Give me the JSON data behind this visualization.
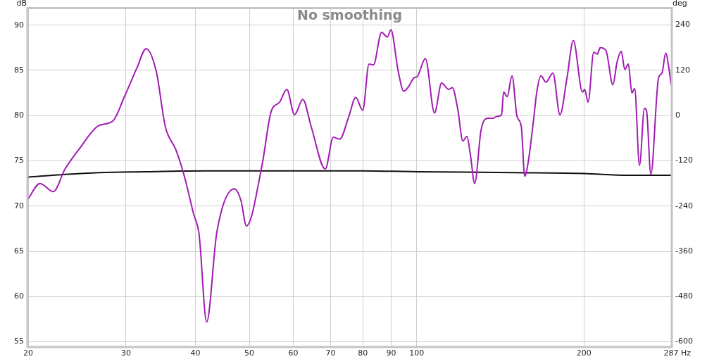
{
  "chart_data": {
    "type": "line",
    "title": "No smoothing",
    "xlabel": "Hz",
    "ylabel": "dB",
    "y2label": "deg",
    "log": "x",
    "grid": true,
    "legend": false,
    "marker": "none",
    "xlim": [
      20,
      287
    ],
    "xticks": [
      20,
      30,
      40,
      50,
      60,
      70,
      80,
      90,
      100,
      200,
      287
    ],
    "ylim": [
      54.5,
      91.8
    ],
    "yticks": [
      55,
      60,
      65,
      70,
      75,
      80,
      85,
      90
    ],
    "y2lim": [
      -612,
      283
    ],
    "y2ticks": [
      -600,
      -480,
      -360,
      -240,
      -120,
      0,
      120,
      240
    ],
    "series": [
      {
        "color": "#a11cb3",
        "x": [
          20,
          21.0,
          22.2,
          23.3,
          24.7,
          26.8,
          28.4,
          29.8,
          31.4,
          32.6,
          34.0,
          35.3,
          36.9,
          38.2,
          39.7,
          40.6,
          41.9,
          43.7,
          47.0,
          48.3,
          49.4,
          52.7,
          54.7,
          56.7,
          58.4,
          60.3,
          62.4,
          64.6,
          68.5,
          70.8,
          72.7,
          75.5,
          77.7,
          80.0,
          82.1,
          83.6,
          86.5,
          88.6,
          89.9,
          92.6,
          94.8,
          96.7,
          99.0,
          100.2,
          103.7,
          107.7,
          110.9,
          114.2,
          115.9,
          118.6,
          121.1,
          123.2,
          125.0,
          127.2,
          130.6,
          134.5,
          137.3,
          139.3,
          142.2,
          143.4,
          145.5,
          148.5,
          151.6,
          154.3,
          156.5,
          158.8,
          162.6,
          164.5,
          167.4,
          170.9,
          175.9,
          181.1,
          186.5,
          191.4,
          198.8,
          200.6,
          203.5,
          208.3,
          211.4,
          213.9,
          219.1,
          225.5,
          229.4,
          233.5,
          236.9,
          240.4,
          244.0,
          246.8,
          251.8,
          257.0,
          259.3,
          263.9,
          272.5,
          276.4,
          280.6,
          284.8,
          287
        ],
        "values": [
          70.8,
          72.5,
          71.6,
          74.1,
          76.3,
          78.9,
          79.4,
          82.1,
          85.3,
          87.4,
          84.9,
          78.8,
          76.2,
          73.3,
          69.1,
          66.9,
          57.2,
          67.1,
          71.9,
          70.6,
          67.8,
          74.5,
          80.4,
          81.5,
          82.9,
          80.1,
          81.8,
          78.8,
          74.1,
          77.6,
          77.4,
          79.9,
          82.0,
          80.6,
          85.7,
          85.6,
          89.2,
          88.7,
          89.5,
          85.0,
          82.7,
          83.2,
          84.2,
          84.3,
          86.3,
          80.3,
          83.6,
          82.9,
          83.1,
          80.7,
          77.2,
          77.7,
          75.6,
          72.5,
          78.4,
          79.7,
          79.7,
          79.9,
          80.1,
          82.6,
          82.1,
          84.4,
          79.9,
          78.8,
          73.3,
          74.9,
          79.9,
          82.6,
          84.4,
          83.7,
          84.7,
          80.1,
          84.2,
          88.3,
          82.6,
          82.9,
          81.5,
          87.0,
          86.8,
          87.5,
          87.2,
          83.4,
          85.9,
          87.1,
          85.1,
          85.7,
          82.5,
          83.0,
          74.5,
          80.8,
          80.5,
          73.5,
          84.2,
          84.7,
          86.9,
          85.0,
          83.4
        ]
      },
      {
        "color": "#111111",
        "x": [
          20,
          23.3,
          26.8,
          32.6,
          41.9,
          58.4,
          80,
          100,
          150,
          200,
          240,
          287
        ],
        "values": [
          73.2,
          73.5,
          73.7,
          73.8,
          73.9,
          73.9,
          73.9,
          73.8,
          73.7,
          73.6,
          73.4,
          73.4
        ]
      }
    ]
  }
}
